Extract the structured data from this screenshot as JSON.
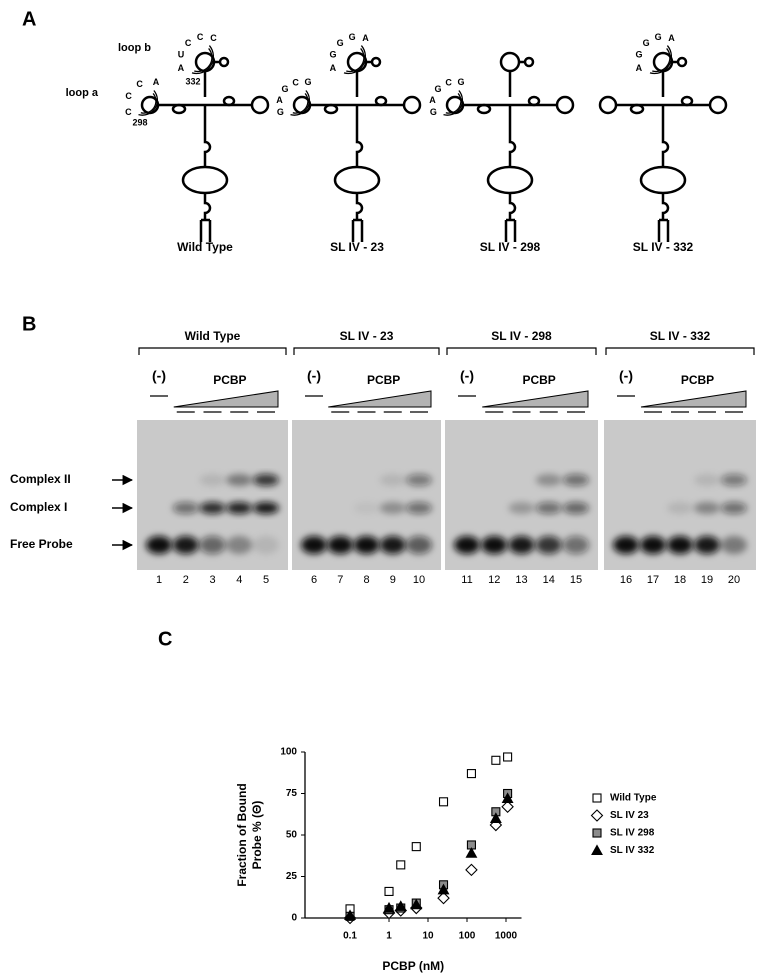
{
  "panel_labels": [
    "A",
    "B",
    "C"
  ],
  "diagrams": [
    {
      "label": "Wild Type",
      "loop_b": {
        "name": "loop b",
        "letters": [
          "C",
          "C",
          "C",
          "U",
          "A"
        ],
        "position": 332
      },
      "loop_a": {
        "name": "loop a",
        "letters": [
          "A",
          "C",
          "C",
          "C"
        ],
        "position": 298
      }
    },
    {
      "label": "SL IV - 23",
      "loop_b": {
        "letters": [
          "A",
          "G",
          "G",
          "G",
          "A"
        ]
      },
      "loop_a": {
        "letters": [
          "G",
          "C",
          "G",
          "A",
          "G"
        ]
      }
    },
    {
      "label": "SL IV - 298",
      "loop_a": {
        "letters": [
          "G",
          "C",
          "G",
          "A",
          "G"
        ]
      }
    },
    {
      "label": "SL IV - 332",
      "loop_b": {
        "letters": [
          "A",
          "G",
          "G",
          "G",
          "A"
        ]
      }
    }
  ],
  "gel": {
    "groups": [
      {
        "name": "Wild Type",
        "control": "(-)",
        "treatment": "PCBP",
        "lanes": [
          1,
          2,
          3,
          4,
          5
        ]
      },
      {
        "name": "SL IV - 23",
        "control": "(-)",
        "treatment": "PCBP",
        "lanes": [
          6,
          7,
          8,
          9,
          10
        ]
      },
      {
        "name": "SL IV - 298",
        "control": "(-)",
        "treatment": "PCBP",
        "lanes": [
          11,
          12,
          13,
          14,
          15
        ]
      },
      {
        "name": "SL IV - 332",
        "control": "(-)",
        "treatment": "PCBP",
        "lanes": [
          16,
          17,
          18,
          19,
          20
        ]
      }
    ],
    "bands": [
      "Complex II",
      "Complex I",
      "Free Probe"
    ]
  },
  "chart_data": {
    "type": "scatter",
    "xlabel": "PCBP (nM)",
    "ylabel": [
      "Fraction of Bound",
      "Probe % (Θ)"
    ],
    "x": [
      0.1,
      1,
      2,
      5,
      25,
      130,
      550,
      1100
    ],
    "series": [
      {
        "name": "Wild Type",
        "marker": "square",
        "color": "#ffffff",
        "values": [
          5.5,
          16,
          32,
          43,
          70,
          87,
          95,
          97
        ]
      },
      {
        "name": "SL IV 23",
        "marker": "diamond",
        "color": "#ffffff",
        "values": [
          0,
          3,
          4.5,
          6,
          12,
          29,
          56,
          67
        ]
      },
      {
        "name": "SL IV 298",
        "marker": "square",
        "color": "#8c8c8c",
        "values": [
          1,
          5,
          6,
          9,
          20,
          44,
          64,
          75
        ]
      },
      {
        "name": "SL IV 332",
        "marker": "triangle",
        "color": "#000000",
        "values": [
          1.5,
          6,
          7,
          8,
          17,
          39,
          60,
          72
        ]
      }
    ],
    "xscale": "log",
    "xlim": [
      0.007,
      2500
    ],
    "xticks": [
      0.1,
      1,
      10,
      100,
      1000
    ],
    "ylim": [
      0,
      100
    ],
    "yticks": [
      0,
      25,
      50,
      75,
      100
    ],
    "legend": "right"
  }
}
